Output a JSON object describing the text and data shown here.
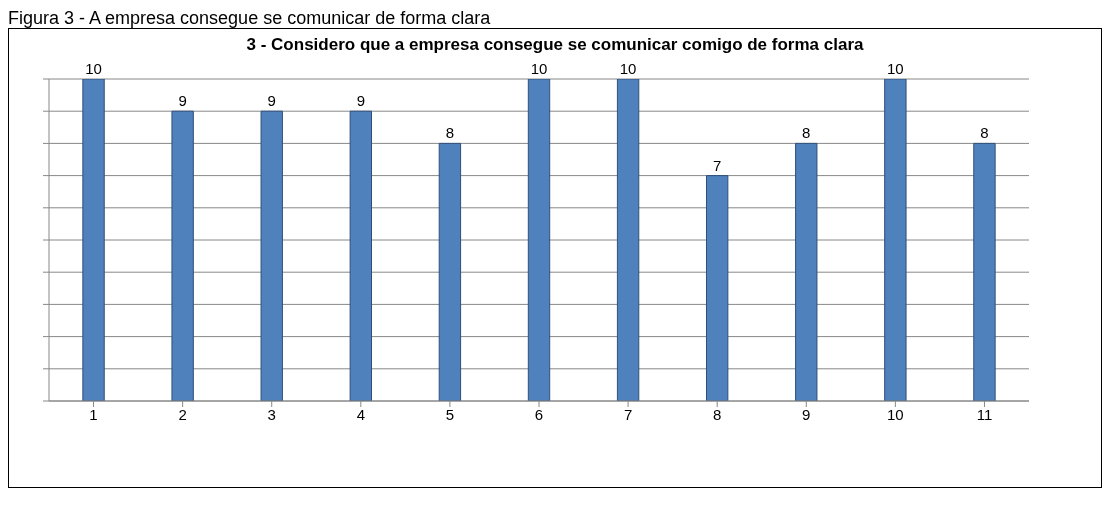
{
  "chart_data": {
    "type": "bar",
    "title": "3 - Considero que a empresa consegue se comunicar comigo de forma clara",
    "annotations": [
      "Figura 3 - A empresa consegue se comunicar de forma clara"
    ],
    "categories": [
      "1",
      "2",
      "3",
      "4",
      "5",
      "6",
      "7",
      "8",
      "9",
      "10",
      "11"
    ],
    "values": [
      10,
      9,
      9,
      9,
      8,
      10,
      10,
      7,
      8,
      10,
      8
    ],
    "color": "#4f81bd",
    "ylim": [
      0,
      10
    ],
    "yticks": [
      {
        "value": 0,
        "label": null
      },
      {
        "value": 1,
        "label": null
      },
      {
        "value": 2,
        "label": null
      },
      {
        "value": 3,
        "label": null
      },
      {
        "value": 4,
        "label": null
      },
      {
        "value": 5,
        "label": null
      },
      {
        "value": 6,
        "label": null
      },
      {
        "value": 7,
        "label": null
      },
      {
        "value": 8,
        "label": null
      },
      {
        "value": 9,
        "label": null
      },
      {
        "value": 10,
        "label": null
      }
    ],
    "grid": "y",
    "tick_labels": "x",
    "data_labels": true
  }
}
